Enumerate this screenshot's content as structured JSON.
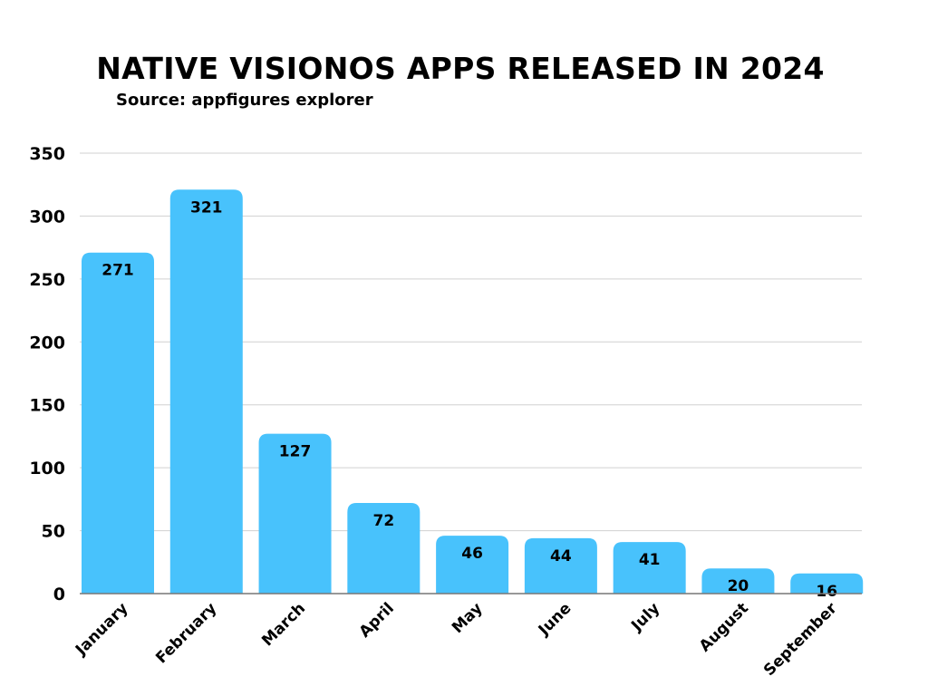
{
  "chart_data": {
    "type": "bar",
    "title": "NATIVE VISIONOS APPS RELEASED IN 2024",
    "subtitle": "Source: appfigures explorer",
    "categories": [
      "January",
      "February",
      "March",
      "April",
      "May",
      "June",
      "July",
      "August",
      "September"
    ],
    "values": [
      271,
      321,
      127,
      72,
      46,
      44,
      41,
      20,
      16
    ],
    "ylim": [
      0,
      350
    ],
    "yticks": [
      0,
      50,
      100,
      150,
      200,
      250,
      300,
      350
    ],
    "grid": true,
    "data_labels": true,
    "bar_color": "#48C2FC",
    "grid_color": "#D0D0D0",
    "xlabel": "",
    "ylabel": ""
  }
}
